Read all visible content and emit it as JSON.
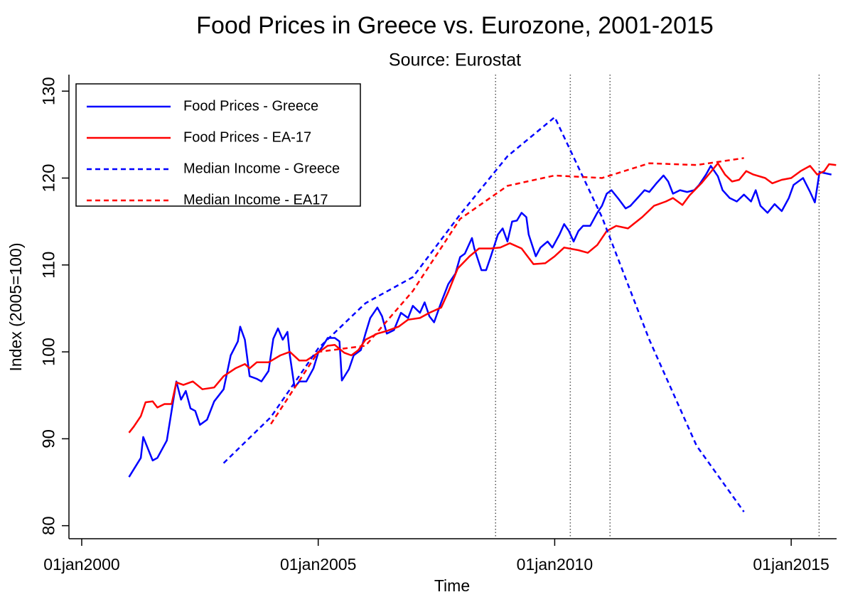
{
  "chart_data": {
    "type": "line",
    "title": "Food Prices in Greece vs. Eurozone, 2001-2015",
    "subtitle": "Source: Eurostat",
    "xlabel": "Time",
    "ylabel": "Index (2005=100)",
    "xlim": [
      1999.73,
      2015.96
    ],
    "ylim": [
      78.5,
      131.9
    ],
    "xticks": [
      {
        "value": 2000,
        "label": "01jan2000"
      },
      {
        "value": 2005,
        "label": "01jan2005"
      },
      {
        "value": 2010,
        "label": "01jan2010"
      },
      {
        "value": 2015,
        "label": "01jan2015"
      }
    ],
    "yticks": [
      80,
      90,
      100,
      110,
      120,
      130
    ],
    "vlines": [
      2008.75,
      2010.33,
      2011.17,
      2015.59
    ],
    "legend": "top-left",
    "series": [
      {
        "name": "Food Prices - Greece",
        "color": "#0000ff",
        "dashed": false,
        "x": [
          2001.0,
          2001.25,
          2001.3,
          2001.5,
          2001.6,
          2001.8,
          2002.0,
          2002.1,
          2002.2,
          2002.3,
          2002.4,
          2002.5,
          2002.65,
          2002.8,
          2003.0,
          2003.15,
          2003.3,
          2003.35,
          2003.45,
          2003.55,
          2003.7,
          2003.8,
          2003.95,
          2004.05,
          2004.15,
          2004.25,
          2004.35,
          2004.4,
          2004.5,
          2004.6,
          2004.75,
          2004.9,
          2005.0,
          2005.1,
          2005.2,
          2005.35,
          2005.45,
          2005.5,
          2005.65,
          2005.75,
          2005.9,
          2006.0,
          2006.1,
          2006.25,
          2006.35,
          2006.45,
          2006.6,
          2006.75,
          2006.9,
          2007.0,
          2007.15,
          2007.25,
          2007.35,
          2007.45,
          2007.6,
          2007.75,
          2007.9,
          2008.0,
          2008.1,
          2008.25,
          2008.3,
          2008.45,
          2008.55,
          2008.65,
          2008.8,
          2008.9,
          2009.0,
          2009.1,
          2009.2,
          2009.3,
          2009.4,
          2009.45,
          2009.6,
          2009.7,
          2009.85,
          2009.95,
          2010.1,
          2010.2,
          2010.3,
          2010.4,
          2010.5,
          2010.6,
          2010.75,
          2010.9,
          2011.0,
          2011.1,
          2011.2,
          2011.35,
          2011.5,
          2011.6,
          2011.75,
          2011.9,
          2012.0,
          2012.15,
          2012.3,
          2012.4,
          2012.5,
          2012.65,
          2012.8,
          2012.95,
          2013.05,
          2013.2,
          2013.3,
          2013.45,
          2013.55,
          2013.7,
          2013.85,
          2014.0,
          2014.15,
          2014.25,
          2014.35,
          2014.5,
          2014.65,
          2014.8,
          2014.95,
          2015.05,
          2015.25,
          2015.4,
          2015.5,
          2015.6,
          2015.85
        ],
        "values": [
          85.6,
          87.8,
          90.2,
          87.5,
          87.8,
          89.8,
          96.6,
          94.5,
          95.5,
          93.5,
          93.2,
          91.6,
          92.2,
          94.3,
          95.7,
          99.6,
          101.2,
          102.9,
          101.4,
          97.2,
          96.9,
          96.6,
          97.8,
          101.5,
          102.7,
          101.4,
          102.3,
          99.6,
          95.9,
          96.6,
          96.6,
          98.1,
          99.9,
          100.7,
          101.6,
          101.6,
          101.2,
          96.7,
          98.0,
          99.6,
          100.2,
          102.1,
          103.9,
          105.1,
          104.1,
          102.1,
          102.5,
          104.5,
          103.9,
          105.3,
          104.5,
          105.7,
          104.1,
          103.4,
          105.7,
          107.8,
          109.0,
          110.9,
          111.3,
          113.1,
          111.9,
          109.4,
          109.4,
          111.0,
          113.5,
          114.2,
          112.7,
          115.0,
          115.1,
          116.0,
          115.5,
          113.5,
          111.0,
          112.0,
          112.7,
          112.0,
          113.5,
          114.7,
          113.9,
          112.7,
          113.9,
          114.5,
          114.5,
          116.0,
          116.8,
          118.2,
          118.6,
          117.6,
          116.5,
          116.8,
          117.7,
          118.6,
          118.4,
          119.4,
          120.3,
          119.6,
          118.2,
          118.6,
          118.4,
          118.6,
          119.2,
          120.4,
          121.4,
          120.2,
          118.6,
          117.7,
          117.3,
          118.1,
          117.3,
          118.6,
          116.8,
          116.0,
          117.0,
          116.2,
          117.7,
          119.2,
          120.0,
          118.4,
          117.2,
          120.7,
          120.4
        ]
      },
      {
        "name": "Food Prices - EA-17",
        "color": "#ff0000",
        "dashed": false,
        "x": [
          2001.0,
          2001.1,
          2001.25,
          2001.35,
          2001.5,
          2001.6,
          2001.75,
          2001.9,
          2002.0,
          2002.15,
          2002.35,
          2002.55,
          2002.8,
          2003.0,
          2003.25,
          2003.45,
          2003.55,
          2003.7,
          2003.95,
          2004.2,
          2004.4,
          2004.6,
          2004.75,
          2005.0,
          2005.2,
          2005.35,
          2005.55,
          2005.7,
          2005.85,
          2006.0,
          2006.25,
          2006.45,
          2006.7,
          2006.9,
          2007.15,
          2007.35,
          2007.6,
          2007.75,
          2007.95,
          2008.2,
          2008.4,
          2008.65,
          2008.85,
          2009.05,
          2009.3,
          2009.55,
          2009.8,
          2010.0,
          2010.2,
          2010.5,
          2010.7,
          2010.9,
          2011.1,
          2011.3,
          2011.55,
          2011.85,
          2012.1,
          2012.35,
          2012.5,
          2012.7,
          2012.85,
          2013.1,
          2013.3,
          2013.45,
          2013.6,
          2013.75,
          2013.9,
          2014.05,
          2014.2,
          2014.45,
          2014.6,
          2014.8,
          2015.0,
          2015.2,
          2015.4,
          2015.55,
          2015.7,
          2015.8,
          2015.95
        ],
        "values": [
          90.7,
          91.4,
          92.6,
          94.2,
          94.3,
          93.6,
          94.0,
          94.0,
          96.5,
          96.2,
          96.6,
          95.7,
          95.9,
          97.2,
          98.1,
          98.6,
          98.1,
          98.8,
          98.8,
          99.6,
          100.0,
          99.0,
          99.0,
          99.9,
          100.7,
          100.8,
          99.9,
          99.6,
          100.2,
          101.4,
          102.1,
          102.4,
          102.9,
          103.7,
          103.9,
          104.5,
          105.1,
          106.9,
          109.6,
          111.0,
          111.9,
          111.9,
          112.0,
          112.5,
          111.9,
          110.1,
          110.2,
          111.0,
          112.0,
          111.7,
          111.4,
          112.3,
          113.9,
          114.5,
          114.2,
          115.5,
          116.8,
          117.3,
          117.7,
          116.9,
          118.0,
          119.4,
          120.7,
          121.7,
          120.4,
          119.6,
          119.8,
          120.8,
          120.4,
          120.0,
          119.4,
          119.8,
          120.0,
          120.8,
          121.4,
          120.4,
          120.8,
          121.6,
          121.5
        ]
      },
      {
        "name": "Median Income - Greece",
        "color": "#0000ff",
        "dashed": true,
        "x": [
          2003,
          2004,
          2005,
          2006,
          2007,
          2008,
          2009,
          2010,
          2011,
          2012,
          2013,
          2014
        ],
        "values": [
          87.2,
          92.5,
          100.4,
          105.6,
          108.6,
          115.8,
          122.5,
          127.0,
          115.5,
          101.4,
          89.2,
          81.6
        ]
      },
      {
        "name": "Median Income - EA17",
        "color": "#ff0000",
        "dashed": true,
        "x": [
          2004,
          2005,
          2006,
          2007,
          2008,
          2009,
          2010,
          2011,
          2012,
          2013,
          2014
        ],
        "values": [
          91.7,
          100.0,
          100.7,
          107.0,
          115.3,
          119.1,
          120.3,
          120.0,
          121.7,
          121.5,
          122.3
        ]
      }
    ]
  }
}
